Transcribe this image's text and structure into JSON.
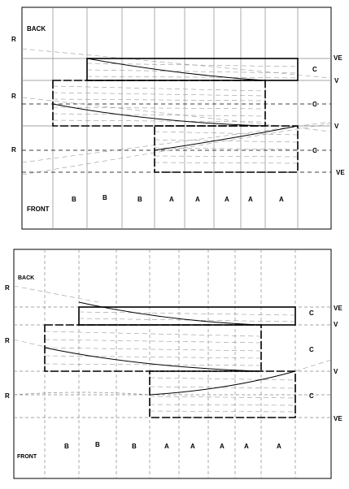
{
  "diagrams": [
    {
      "id": "top",
      "labels": {
        "back": "BACK",
        "front": "FRONT",
        "left_marks": [
          "R",
          "R",
          "R"
        ],
        "right_marks": [
          "VE",
          "C",
          "V",
          "C",
          "V",
          "C",
          "VE"
        ],
        "bottom_row": [
          "B",
          "B",
          "B",
          "A",
          "A",
          "A",
          "A",
          "A"
        ]
      }
    },
    {
      "id": "bottom",
      "labels": {
        "back": "BACK",
        "front": "FRONT",
        "left_marks": [
          "R",
          "R",
          "R"
        ],
        "right_marks": [
          "VE",
          "C",
          "V",
          "C",
          "V",
          "C",
          "VE"
        ],
        "bottom_row": [
          "B",
          "B",
          "B",
          "A",
          "A",
          "A",
          "A",
          "A"
        ]
      }
    }
  ]
}
